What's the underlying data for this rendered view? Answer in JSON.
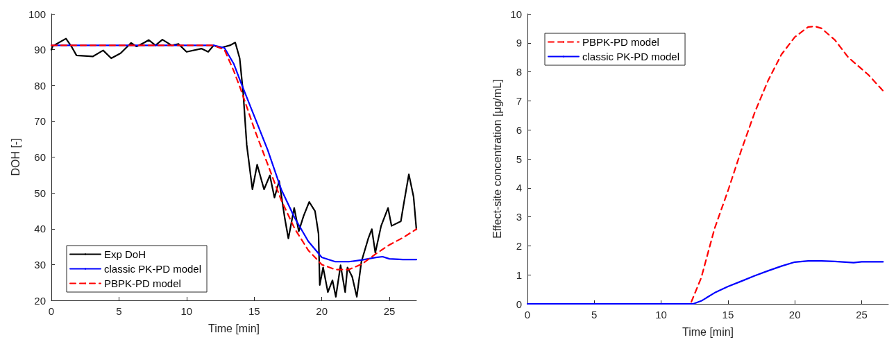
{
  "chart_data": [
    {
      "type": "line",
      "xlabel": "Time [min]",
      "ylabel": "DOH [-]",
      "xlim": [
        0,
        27
      ],
      "xticks": [
        0,
        5,
        10,
        15,
        20,
        25
      ],
      "ylim": [
        20,
        100
      ],
      "yticks": [
        20,
        30,
        40,
        50,
        60,
        70,
        80,
        90,
        100
      ],
      "grid": false,
      "legend": "bottom left",
      "marker": "none",
      "series": [
        {
          "name": "Exp DoH",
          "color": "#000000",
          "line_style": "solid",
          "x": [
            0,
            0.1,
            1.08,
            1.5,
            1.86,
            3.06,
            3.83,
            4.43,
            5.12,
            5.9,
            6.3,
            6.84,
            7.2,
            7.7,
            8.21,
            8.9,
            9.4,
            10.0,
            11.1,
            11.6,
            12.0,
            12.5,
            13.2,
            13.6,
            13.93,
            14.19,
            14.45,
            14.87,
            15.22,
            15.73,
            16.16,
            16.5,
            16.85,
            17.27,
            17.53,
            17.96,
            18.3,
            18.65,
            19.07,
            19.5,
            19.76,
            19.85,
            20.1,
            20.45,
            20.79,
            21.04,
            21.39,
            21.73,
            21.9,
            22.25,
            22.59,
            22.93,
            23.44,
            23.7,
            23.96,
            24.39,
            24.9,
            25.16,
            25.85,
            26.02,
            26.44,
            26.79,
            27.0
          ],
          "values": [
            90,
            91,
            93.1,
            90.8,
            88.4,
            88.1,
            89.8,
            87.6,
            89.0,
            91.9,
            90.9,
            91.9,
            92.7,
            91.2,
            92.8,
            91.2,
            91.6,
            89.4,
            90.3,
            89.4,
            91.2,
            90.5,
            91.2,
            92.0,
            87.6,
            77.8,
            63.4,
            51.0,
            57.9,
            51.0,
            54.9,
            48.7,
            53.3,
            42.8,
            37.3,
            45.8,
            39.3,
            43.5,
            47.5,
            44.9,
            38.6,
            24.3,
            29.2,
            22.3,
            25.6,
            21,
            29.8,
            22.3,
            29.2,
            26.6,
            21,
            30.8,
            37.3,
            39.9,
            33.3,
            40.8,
            45.8,
            40.8,
            42.1,
            46.0,
            55.2,
            48.9,
            39.8
          ]
        },
        {
          "name": "classic PK-PD model",
          "color": "#0000ff",
          "line_style": "solid",
          "x": [
            0,
            12,
            12.8,
            13.5,
            14,
            15,
            16,
            17,
            18,
            19,
            20,
            21,
            22,
            23,
            24,
            24.5,
            25,
            26,
            27
          ],
          "values": [
            91.2,
            91.2,
            90.5,
            86,
            81,
            71.5,
            62,
            51,
            43,
            36.5,
            32,
            30.8,
            30.8,
            31.3,
            32,
            32.2,
            31.6,
            31.4,
            31.4
          ]
        },
        {
          "name": "PBPK-PD model",
          "color": "#ff0000",
          "line_style": "dashed",
          "x": [
            0,
            12,
            12.8,
            13.5,
            14,
            15,
            16,
            17,
            18,
            19,
            20,
            21,
            22,
            23,
            24,
            25,
            26,
            27
          ],
          "values": [
            91.2,
            91.2,
            90,
            84,
            79,
            68,
            58,
            48,
            40,
            34,
            30,
            28.6,
            28.6,
            30.2,
            33,
            35.5,
            37.5,
            39.9
          ]
        }
      ]
    },
    {
      "type": "line",
      "xlabel": "Time [min]",
      "ylabel": "Effect-site concentration [μg/mL]",
      "xlim": [
        0,
        27
      ],
      "xticks": [
        0,
        5,
        10,
        15,
        20,
        25
      ],
      "ylim": [
        0,
        10
      ],
      "yticks": [
        0,
        1,
        2,
        3,
        4,
        5,
        6,
        7,
        8,
        9,
        10
      ],
      "grid": false,
      "legend": "top left",
      "marker": "none",
      "series": [
        {
          "name": "PBPK-PD model",
          "color": "#ff0000",
          "line_style": "dashed",
          "x": [
            0,
            12.2,
            13,
            14,
            15,
            16,
            17,
            18,
            19,
            20,
            21,
            21.5,
            22,
            23,
            24,
            24.5,
            25.5,
            26.6
          ],
          "values": [
            0,
            0,
            0.9,
            2.6,
            3.9,
            5.3,
            6.6,
            7.7,
            8.6,
            9.2,
            9.55,
            9.57,
            9.5,
            9.1,
            8.5,
            8.3,
            7.9,
            7.35
          ]
        },
        {
          "name": "classic PK-PD model",
          "color": "#0000ff",
          "line_style": "solid",
          "x": [
            0,
            12.4,
            13,
            14,
            15,
            16,
            17,
            18,
            19,
            20,
            21,
            22,
            23,
            24.4,
            25,
            26.6
          ],
          "values": [
            0,
            0,
            0.1,
            0.38,
            0.6,
            0.78,
            0.97,
            1.14,
            1.3,
            1.44,
            1.48,
            1.48,
            1.46,
            1.42,
            1.45,
            1.45
          ]
        }
      ]
    }
  ]
}
